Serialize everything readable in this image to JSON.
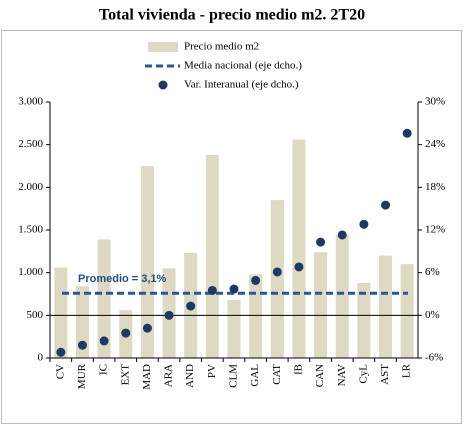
{
  "chart_data": {
    "type": "bar",
    "title": "Total vivienda - precio medio m2. 2T20",
    "categories": [
      "CV",
      "MUR",
      "IC",
      "EXT",
      "MAD",
      "ARA",
      "AND",
      "PV",
      "CLM",
      "GAL",
      "CAT",
      "IB",
      "CAN",
      "NAV",
      "CyL",
      "AST",
      "LR"
    ],
    "series": [
      {
        "name": "Precio medio m2",
        "type": "bar",
        "color": "#ddd9c3",
        "values": [
          1060,
          840,
          1390,
          560,
          2250,
          1050,
          1230,
          2380,
          680,
          980,
          1850,
          2560,
          1240,
          1440,
          880,
          1200,
          1100
        ]
      },
      {
        "name": "Var. Interanual (eje dcho.)",
        "type": "scatter",
        "axis": "y2",
        "color": "#1f3864",
        "values": [
          -5.2,
          -4.2,
          -3.6,
          -2.5,
          -1.8,
          0.0,
          1.3,
          3.5,
          3.7,
          4.9,
          6.1,
          6.8,
          10.3,
          11.3,
          12.8,
          15.5,
          25.6
        ]
      }
    ],
    "reference_lines": [
      {
        "name": "Media nacional (eje dcho.)",
        "value": 3.1,
        "axis": "y2",
        "color": "#2e5597",
        "label": "Promedio = 3,1%"
      }
    ],
    "ylim": [
      0,
      3000
    ],
    "yticks": [
      0,
      500,
      {
        "value": 1000,
        "label": "1.000"
      },
      {
        "value": 1500,
        "label": "1.500"
      },
      {
        "value": 2000,
        "label": "2.000"
      },
      {
        "value": 2500,
        "label": "2.500"
      },
      {
        "value": 3000,
        "label": "3.000"
      }
    ],
    "y2lim": [
      -6,
      30
    ],
    "y2ticks": [
      {
        "value": -6,
        "label": "-6%"
      },
      {
        "value": 0,
        "label": "0%"
      },
      {
        "value": 6,
        "label": "6%"
      },
      {
        "value": 12,
        "label": "12%"
      },
      {
        "value": 18,
        "label": "18%"
      },
      {
        "value": 24,
        "label": "24%"
      },
      {
        "value": 30,
        "label": "30%"
      }
    ],
    "grid": false
  }
}
